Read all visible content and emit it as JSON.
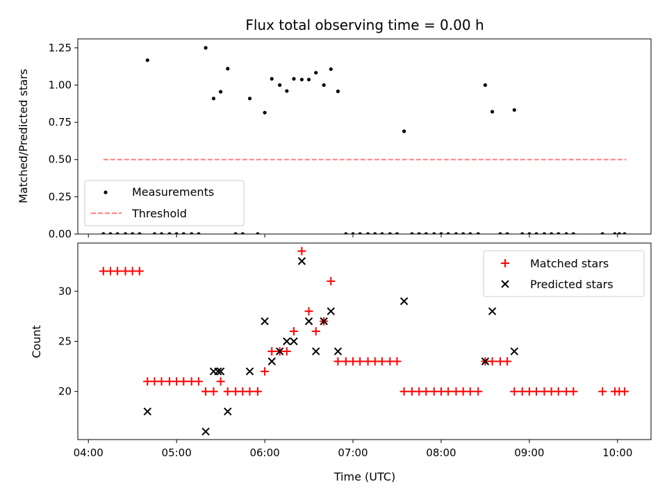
{
  "chart_data": [
    {
      "type": "scatter",
      "title": "Flux total observing time = 0.00 h",
      "ylabel": "Matched/Predicted stars",
      "xlabel": "",
      "ylim": [
        0,
        1.31
      ],
      "xlim_hours": [
        3.88,
        10.38
      ],
      "yticks": [
        0.0,
        0.25,
        0.5,
        0.75,
        1.0,
        1.25
      ],
      "ytick_labels": [
        "0.00",
        "0.25",
        "0.50",
        "0.75",
        "1.00",
        "1.25"
      ],
      "legend": {
        "position": "lower-left",
        "entries": [
          "Measurements",
          "Threshold"
        ]
      },
      "threshold": {
        "name": "Threshold",
        "value": 0.5,
        "x_range": [
          4.17,
          10.1
        ],
        "color": "#ff7f7f"
      },
      "measurements": {
        "name": "Measurements",
        "color": "#000000",
        "x": [
          4.17,
          4.25,
          4.33,
          4.42,
          4.5,
          4.58,
          4.67,
          4.75,
          4.83,
          4.92,
          5.0,
          5.08,
          5.17,
          5.25,
          5.33,
          5.42,
          5.5,
          5.58,
          5.67,
          5.75,
          5.83,
          5.92,
          6.0,
          6.08,
          6.17,
          6.25,
          6.33,
          6.42,
          6.5,
          6.58,
          6.67,
          6.75,
          6.83,
          6.92,
          7.0,
          7.08,
          7.17,
          7.25,
          7.33,
          7.42,
          7.5,
          7.58,
          7.67,
          7.75,
          7.83,
          7.92,
          8.0,
          8.08,
          8.17,
          8.25,
          8.33,
          8.42,
          8.5,
          8.58,
          8.67,
          8.75,
          8.83,
          8.92,
          9.0,
          9.08,
          9.17,
          9.25,
          9.33,
          9.42,
          9.5,
          9.83,
          9.97,
          10.02,
          10.08
        ],
        "y": [
          0,
          0,
          0,
          0,
          0,
          0,
          1.167,
          0,
          0,
          0,
          0,
          0,
          0,
          0,
          1.25,
          0.91,
          0.955,
          1.11,
          0,
          0,
          0.91,
          0,
          0.815,
          1.042,
          1.0,
          0.96,
          1.042,
          1.037,
          1.037,
          1.083,
          1.0,
          1.107,
          0.958,
          0,
          0,
          0,
          0,
          0,
          0,
          0,
          0,
          0.69,
          0,
          0,
          0,
          0,
          0,
          0,
          0,
          0,
          0,
          0,
          1.0,
          0.821,
          0,
          0,
          0.833,
          0,
          0,
          0,
          0,
          0,
          0,
          0,
          0,
          0,
          0,
          0,
          0
        ]
      }
    },
    {
      "type": "scatter",
      "title": "",
      "xlabel": "Time (UTC)",
      "ylabel": "Count",
      "ylim": [
        15.2,
        34.8
      ],
      "xlim_hours": [
        3.88,
        10.38
      ],
      "yticks": [
        20,
        25,
        30
      ],
      "ytick_labels": [
        "20",
        "25",
        "30"
      ],
      "xticks_hours": [
        4,
        5,
        6,
        7,
        8,
        9,
        10
      ],
      "xtick_labels": [
        "04:00",
        "05:00",
        "06:00",
        "07:00",
        "08:00",
        "09:00",
        "10:00"
      ],
      "legend": {
        "position": "top-right",
        "entries": [
          "Matched stars",
          "Predicted stars"
        ]
      },
      "series": [
        {
          "name": "Matched stars",
          "marker": "plus",
          "color": "#ff0000",
          "x": [
            4.17,
            4.25,
            4.33,
            4.42,
            4.5,
            4.58,
            4.67,
            4.75,
            4.83,
            4.92,
            5.0,
            5.08,
            5.17,
            5.25,
            5.33,
            5.42,
            5.5,
            5.58,
            5.67,
            5.75,
            5.83,
            5.92,
            6.0,
            6.08,
            6.17,
            6.25,
            6.33,
            6.42,
            6.5,
            6.58,
            6.67,
            6.75,
            6.83,
            6.92,
            7.0,
            7.08,
            7.17,
            7.25,
            7.33,
            7.42,
            7.5,
            7.58,
            7.67,
            7.75,
            7.83,
            7.92,
            8.0,
            8.08,
            8.17,
            8.25,
            8.33,
            8.42,
            8.5,
            8.58,
            8.67,
            8.75,
            8.83,
            8.92,
            9.0,
            9.08,
            9.17,
            9.25,
            9.33,
            9.42,
            9.5,
            9.83,
            9.97,
            10.02,
            10.08
          ],
          "y": [
            32,
            32,
            32,
            32,
            32,
            32,
            21,
            21,
            21,
            21,
            21,
            21,
            21,
            21,
            20,
            20,
            21,
            20,
            20,
            20,
            20,
            20,
            22,
            24,
            24,
            24,
            26,
            34,
            28,
            26,
            27,
            31,
            23,
            23,
            23,
            23,
            23,
            23,
            23,
            23,
            23,
            20,
            20,
            20,
            20,
            20,
            20,
            20,
            20,
            20,
            20,
            20,
            23,
            23,
            23,
            23,
            20,
            20,
            20,
            20,
            20,
            20,
            20,
            20,
            20,
            20,
            20,
            20,
            20
          ]
        },
        {
          "name": "Predicted stars",
          "marker": "x",
          "color": "#000000",
          "x": [
            4.67,
            5.33,
            5.42,
            5.47,
            5.5,
            5.58,
            5.83,
            6.0,
            6.08,
            6.17,
            6.25,
            6.33,
            6.42,
            6.5,
            6.58,
            6.67,
            6.75,
            6.83,
            7.58,
            8.5,
            8.58,
            8.83
          ],
          "y": [
            18,
            16,
            22,
            22,
            22,
            18,
            22,
            27,
            23,
            24,
            25,
            25,
            33,
            27,
            24,
            27,
            28,
            24,
            29,
            23,
            28,
            24
          ]
        }
      ]
    }
  ]
}
